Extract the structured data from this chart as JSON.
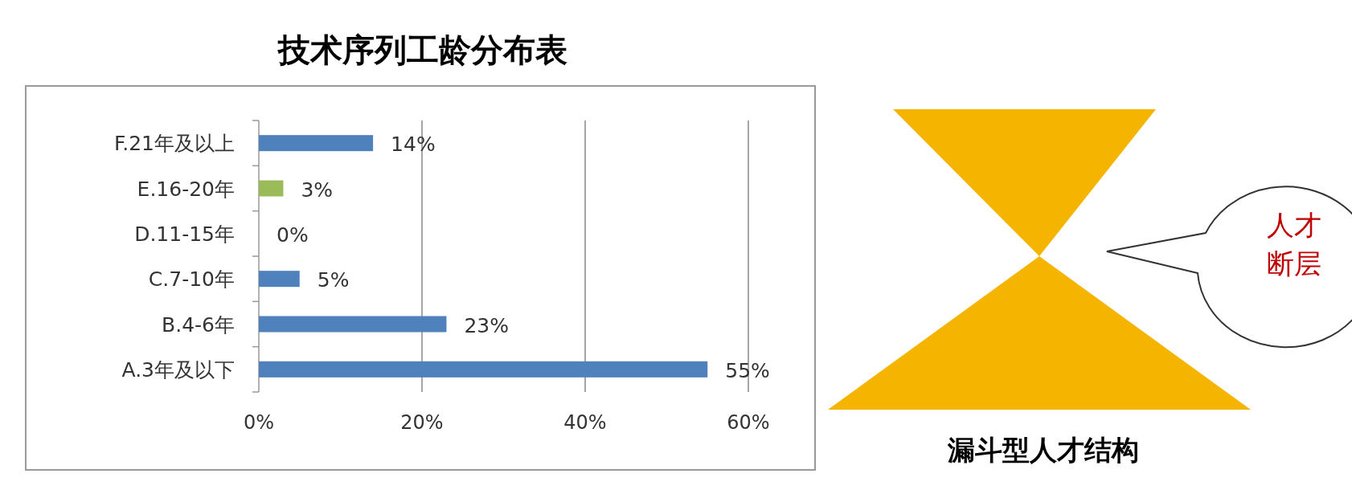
{
  "chart_data": {
    "type": "bar",
    "orientation": "horizontal",
    "title": "技术序列工龄分布表",
    "categories": [
      "F.21年及以上",
      "E.16-20年",
      "D.11-15年",
      "C.7-10年",
      "B.4-6年",
      "A.3年及以下"
    ],
    "values": [
      14,
      3,
      0,
      5,
      23,
      55
    ],
    "colors": [
      "#4f81bd",
      "#9bbb59",
      "#4f81bd",
      "#4f81bd",
      "#4f81bd",
      "#4f81bd"
    ],
    "value_labels": [
      "14%",
      "3%",
      "0%",
      "5%",
      "23%",
      "55%"
    ],
    "xlim": [
      0,
      60
    ],
    "xticks": [
      {
        "value": 0,
        "label": "0%"
      },
      {
        "value": 20,
        "label": "20%"
      },
      {
        "value": 40,
        "label": "40%"
      },
      {
        "value": 60,
        "label": "60%"
      }
    ],
    "grid": "x",
    "annotations": [
      "人才",
      "断层",
      "漏斗型人才结构"
    ]
  }
}
